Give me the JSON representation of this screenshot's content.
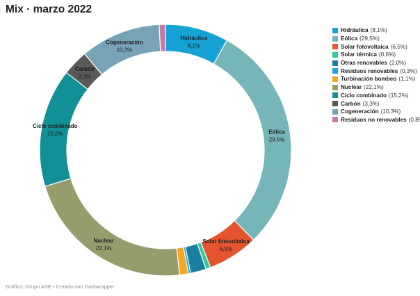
{
  "header": {
    "title": "Mix · marzo 2022"
  },
  "footer": {
    "credit": "Gráfico: Grupo ASE • Creado con Datawrapper"
  },
  "chart_data": {
    "type": "pie",
    "subtype": "donut",
    "title": "Mix · marzo 2022",
    "legend_position": "top-right",
    "slices": [
      {
        "name": "Hidráulica",
        "value": 8.1,
        "label": "8,1%",
        "value_label": "8,1%",
        "color": "#17a2d6"
      },
      {
        "name": "Eólica",
        "value": 29.5,
        "label": "29,5%",
        "value_label": "29,5%",
        "color": "#76b6b8"
      },
      {
        "name": "Solar fotovoltaica",
        "value": 6.5,
        "label": "6,5%",
        "value_label": "6,5%",
        "color": "#e4552f"
      },
      {
        "name": "Solar térmica",
        "value": 0.6,
        "label": "0,6%",
        "value_label": "0,6%",
        "color": "#2ecc9b"
      },
      {
        "name": "Otras renovables",
        "value": 2.0,
        "label": "2,0%",
        "value_label": "2,0%",
        "color": "#1a7fa0"
      },
      {
        "name": "Residuos renovables",
        "value": 0.3,
        "label": "0,3%",
        "value_label": "0,3%",
        "color": "#1aa6d8"
      },
      {
        "name": "Turbinación bombeo",
        "value": 1.1,
        "label": "1,1%",
        "value_label": "1,1%",
        "color": "#f4a623"
      },
      {
        "name": "Nuclear",
        "value": 22.1,
        "label": "22,1%",
        "value_label": "22,1%",
        "color": "#979c6c"
      },
      {
        "name": "Ciclo combinado",
        "value": 15.2,
        "label": "15,2%",
        "value_label": "15,2%",
        "color": "#138f97"
      },
      {
        "name": "Carbón",
        "value": 3.3,
        "label": "3,3%",
        "value_label": "3,3%",
        "color": "#595959"
      },
      {
        "name": "Cogeneración",
        "value": 10.3,
        "label": "10,3%",
        "value_label": "10,3%",
        "color": "#78a3b7"
      },
      {
        "name": "Residuos no renovables",
        "value": 0.8,
        "label": "0,8%",
        "value_label": "0,8%",
        "color": "#c57aa7"
      }
    ],
    "in_chart_labels": [
      "Hidráulica",
      "Eólica",
      "Solar fotovoltaica",
      "Nuclear",
      "Ciclo combinado",
      "Carbón",
      "Cogeneración"
    ]
  }
}
